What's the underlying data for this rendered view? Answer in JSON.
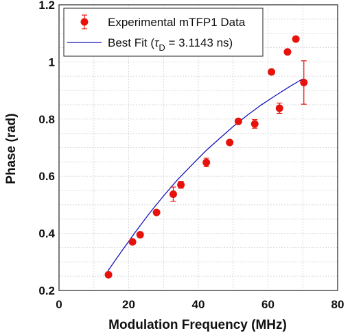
{
  "chart_data": {
    "type": "scatter",
    "xlabel": "Modulation Frequency (MHz)",
    "ylabel": "Phase (rad)",
    "xlim": [
      0,
      80
    ],
    "ylim": [
      0.2,
      1.2
    ],
    "x_ticks": [
      0,
      20,
      40,
      60,
      80
    ],
    "y_ticks": [
      0.2,
      0.4,
      0.6,
      0.8,
      1.0,
      1.2
    ],
    "x_tick_labels": [
      "0",
      "20",
      "40",
      "60",
      "80"
    ],
    "y_tick_labels": [
      "0.2",
      "0.4",
      "0.6",
      "0.8",
      "1",
      "1.2"
    ],
    "grid": true,
    "legend_position": "top-left",
    "series": [
      {
        "name": "Experimental mTFP1 Data",
        "kind": "errorbar",
        "color": "#e8120c",
        "x": [
          14.2,
          21.1,
          23.3,
          28.0,
          32.8,
          35.0,
          42.3,
          49.0,
          51.5,
          56.2,
          61.0,
          63.3,
          65.6,
          68.0,
          70.3
        ],
        "y": [
          0.255,
          0.37,
          0.395,
          0.473,
          0.537,
          0.57,
          0.648,
          0.718,
          0.792,
          0.783,
          0.965,
          0.838,
          1.035,
          1.08,
          0.928
        ],
        "err": [
          0.0,
          0.008,
          0.0,
          0.0,
          0.025,
          0.012,
          0.015,
          0.0,
          0.0,
          0.015,
          0.0,
          0.018,
          0.0,
          0.0,
          0.076
        ]
      },
      {
        "name": "Best Fit (τD = 3.1143 ns)",
        "name_parts": [
          "Best Fit (",
          "τ",
          "D",
          " = 3.1143 ns)"
        ],
        "kind": "line",
        "color": "#1212b8",
        "tau_ns": 3.1143,
        "x": [
          14,
          18,
          22,
          26,
          30,
          34,
          38,
          42,
          46,
          50,
          54,
          58,
          62,
          66,
          70
        ],
        "y": [
          0.268,
          0.338,
          0.406,
          0.471,
          0.531,
          0.587,
          0.638,
          0.687,
          0.731,
          0.774,
          0.813,
          0.849,
          0.881,
          0.912,
          0.941
        ]
      }
    ]
  }
}
